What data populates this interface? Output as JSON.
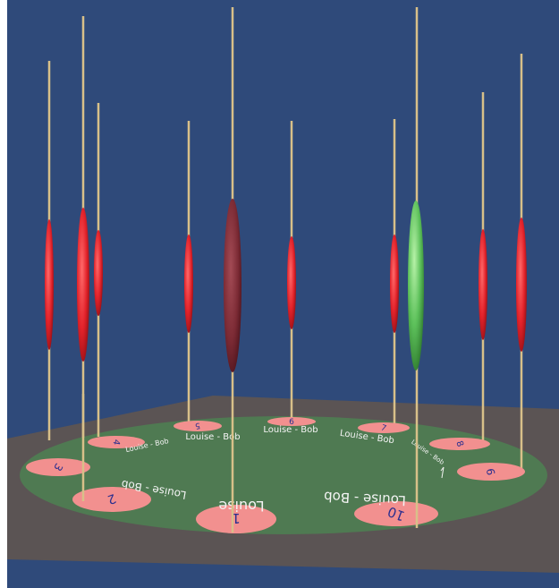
{
  "scene": {
    "colors": {
      "background": "#2f4a7a",
      "floor": "#5b5454",
      "table": "#4f7a52",
      "pad": "#f2908f",
      "pad_text": "#2b2f8f",
      "rod": "#d8c089",
      "piece_red": "#e3232b",
      "piece_highlight": "#7b2a34",
      "piece_green": "#5cc05a",
      "label": "#f4f4f4"
    },
    "pads": [
      {
        "id": "pad-1",
        "number": "1"
      },
      {
        "id": "pad-2",
        "number": "2"
      },
      {
        "id": "pad-3",
        "number": "3"
      },
      {
        "id": "pad-4",
        "number": "4"
      },
      {
        "id": "pad-5",
        "number": "5"
      },
      {
        "id": "pad-6",
        "number": "6"
      },
      {
        "id": "pad-7",
        "number": "7"
      },
      {
        "id": "pad-8",
        "number": "8"
      },
      {
        "id": "pad-9",
        "number": "9"
      },
      {
        "id": "pad-10",
        "number": "10"
      }
    ],
    "player_labels": [
      {
        "text": "Louise - Bob"
      },
      {
        "text": "Louise - Bob"
      },
      {
        "text": "Louise - Bob"
      },
      {
        "text": "Louise - Bob"
      },
      {
        "text": "Louise - Bob"
      },
      {
        "text": "Louise - Bob"
      },
      {
        "text": "Louise - Bob"
      },
      {
        "text": "Louise"
      }
    ],
    "pieces": [
      {
        "id": "piece-1",
        "state": "red"
      },
      {
        "id": "piece-2",
        "state": "red"
      },
      {
        "id": "piece-3",
        "state": "red"
      },
      {
        "id": "piece-4",
        "state": "red"
      },
      {
        "id": "piece-5",
        "state": "highlighted"
      },
      {
        "id": "piece-6",
        "state": "red"
      },
      {
        "id": "piece-7",
        "state": "red"
      },
      {
        "id": "piece-8",
        "state": "green"
      },
      {
        "id": "piece-9",
        "state": "red"
      },
      {
        "id": "piece-10",
        "state": "red"
      }
    ]
  }
}
